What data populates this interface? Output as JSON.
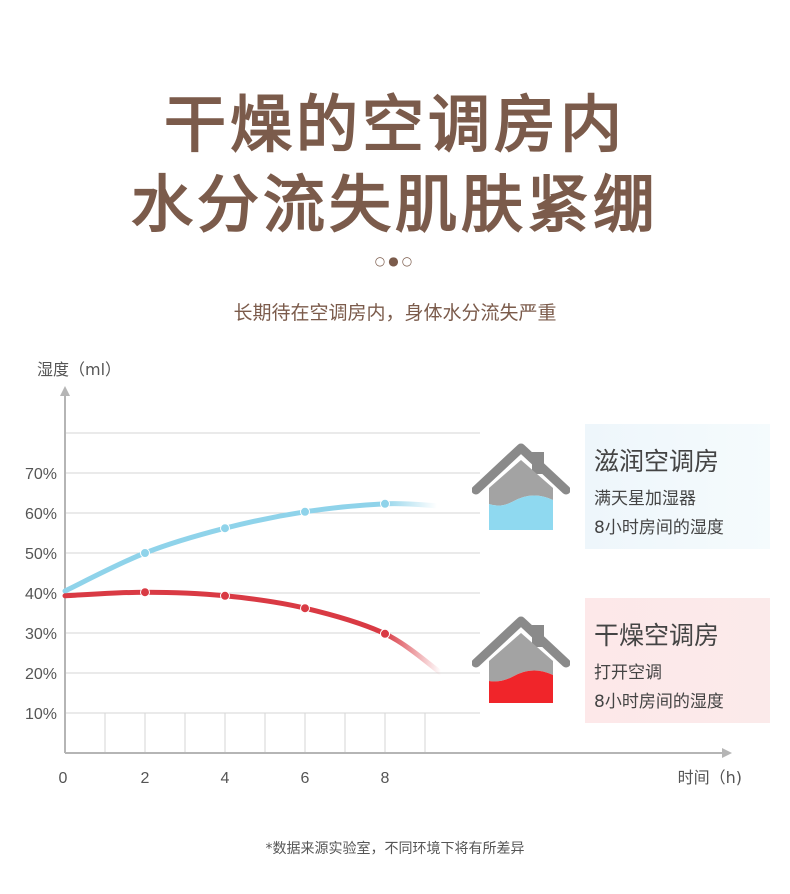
{
  "header": {
    "title_line1": "干燥的空调房内",
    "title_line2": "水分流失肌肤紧绷",
    "dots": "○●○",
    "subtitle": "长期待在空调房内，身体水分流失严重"
  },
  "cards": {
    "humid": {
      "title": "滋润空调房",
      "line1": "满天星加湿器",
      "line2": "8小时房间的湿度",
      "icon": "house-icon",
      "fill_color": "#8fd9f0"
    },
    "dry": {
      "title": "干燥空调房",
      "line1": "打开空调",
      "line2": "8小时房间的湿度",
      "icon": "house-icon",
      "fill_color": "#f0252a"
    }
  },
  "footnote": "*数据来源实验室，不同环境下将有所差异",
  "chart_data": {
    "type": "line",
    "title": "",
    "ylabel": "湿度（ml）",
    "xlabel": "时间（h)",
    "x_ticks": [
      "0",
      "2",
      "4",
      "6",
      "8"
    ],
    "y_ticks": [
      "10%",
      "20%",
      "30%",
      "40%",
      "50%",
      "60%",
      "70%"
    ],
    "xlim": [
      0,
      16
    ],
    "ylim": [
      0,
      100
    ],
    "grid": true,
    "series": [
      {
        "color": "#8fd3ea",
        "points": [
          [
            0,
            40.5
          ],
          [
            2,
            50
          ],
          [
            4,
            56.2
          ],
          [
            6,
            60.3
          ],
          [
            8,
            62.3
          ],
          [
            9.3,
            61.8
          ]
        ]
      },
      {
        "color": "#d93a44",
        "points": [
          [
            0,
            39.3
          ],
          [
            2,
            40.2
          ],
          [
            4,
            39.3
          ],
          [
            6,
            36.2
          ],
          [
            8,
            29.8
          ],
          [
            9.4,
            20
          ]
        ]
      }
    ]
  }
}
